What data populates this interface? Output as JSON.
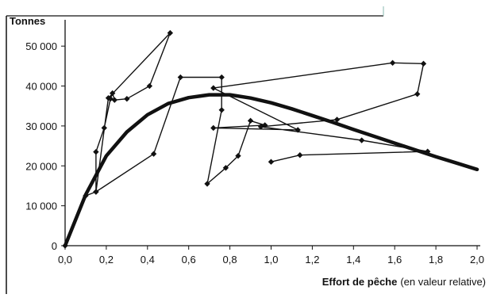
{
  "chart_data": {
    "type": "line",
    "title": "",
    "ylabel": "Tonnes",
    "xlabel": "Effort de pêche",
    "xlabel_note": "(en valeur relative)",
    "xlim": [
      0,
      2.0
    ],
    "ylim": [
      0,
      55000
    ],
    "x_ticks": [
      0,
      0.2,
      0.4,
      0.6,
      0.8,
      1.0,
      1.2,
      1.4,
      1.6,
      1.8,
      2.0
    ],
    "x_tick_labels": [
      "0,0",
      "0,2",
      "0,4",
      "0,6",
      "0,8",
      "1,0",
      "1,2",
      "1,4",
      "1,6",
      "1,8",
      "2,0"
    ],
    "y_ticks": [
      0,
      10000,
      20000,
      30000,
      40000,
      50000
    ],
    "y_tick_labels": [
      "0",
      "10 000",
      "20 000",
      "30 000",
      "40 000",
      "50 000"
    ],
    "grid": false,
    "legend": "none",
    "colors": {
      "line": "#111111",
      "frame": "#111111",
      "background": "#ffffff"
    },
    "series": [
      {
        "role": "observed",
        "style": "thin-with-markers",
        "points": [
          [
            0.0,
            0
          ],
          [
            0.1,
            12500
          ],
          [
            0.15,
            13500
          ],
          [
            0.15,
            23500
          ],
          [
            0.19,
            29500
          ],
          [
            0.22,
            36800
          ],
          [
            0.23,
            38200
          ],
          [
            0.24,
            36500
          ],
          [
            0.3,
            36800
          ],
          [
            0.41,
            40000
          ],
          [
            0.51,
            53300
          ],
          [
            0.21,
            37000
          ],
          [
            0.15,
            13500
          ],
          [
            0.43,
            23000
          ],
          [
            0.56,
            42200
          ],
          [
            0.76,
            42200
          ],
          [
            0.76,
            34000
          ],
          [
            0.69,
            15500
          ],
          [
            0.78,
            19500
          ],
          [
            0.84,
            22500
          ],
          [
            0.9,
            31300
          ],
          [
            0.97,
            30200
          ],
          [
            0.72,
            29500
          ],
          [
            1.13,
            29000
          ],
          [
            0.72,
            39500
          ],
          [
            1.59,
            45800
          ],
          [
            1.74,
            45600
          ],
          [
            1.71,
            38000
          ],
          [
            1.32,
            31600
          ],
          [
            0.95,
            29800
          ],
          [
            1.44,
            26400
          ],
          [
            1.76,
            23600
          ],
          [
            1.14,
            22700
          ],
          [
            1.0,
            21000
          ]
        ]
      },
      {
        "role": "fitted",
        "style": "thick-smooth",
        "points": [
          [
            0.0,
            0
          ],
          [
            0.1,
            12800
          ],
          [
            0.2,
            22500
          ],
          [
            0.3,
            28500
          ],
          [
            0.4,
            32800
          ],
          [
            0.5,
            35600
          ],
          [
            0.6,
            37100
          ],
          [
            0.7,
            37800
          ],
          [
            0.8,
            37800
          ],
          [
            0.9,
            37000
          ],
          [
            1.0,
            35800
          ],
          [
            1.1,
            34300
          ],
          [
            1.2,
            32600
          ],
          [
            1.3,
            30900
          ],
          [
            1.4,
            29100
          ],
          [
            1.5,
            27400
          ],
          [
            1.6,
            25700
          ],
          [
            1.7,
            24000
          ],
          [
            1.8,
            22300
          ],
          [
            1.9,
            20700
          ],
          [
            2.0,
            19100
          ]
        ]
      }
    ]
  }
}
